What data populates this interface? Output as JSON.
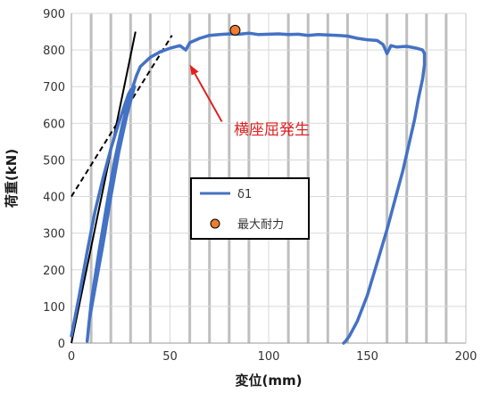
{
  "chart_data": {
    "type": "line",
    "title": "",
    "xlabel": "変位(mm)",
    "ylabel": "荷重(kN)",
    "xlim": [
      0,
      200
    ],
    "ylim": [
      0,
      900
    ],
    "xticks": [
      "0",
      "50",
      "100",
      "150",
      "200"
    ],
    "yticks": [
      "0",
      "100",
      "200",
      "300",
      "400",
      "500",
      "600",
      "700",
      "800",
      "900"
    ],
    "grid": {
      "x_minor_step": 10,
      "x_major_step": 50,
      "y_step": 100
    },
    "series": [
      {
        "name": "δ1",
        "color": "#4472C4",
        "x": [
          0,
          4,
          8,
          12,
          16,
          20,
          24,
          27,
          29,
          30,
          32,
          28,
          24,
          20,
          16,
          12,
          9,
          8,
          10,
          14,
          18,
          22,
          26,
          30,
          33,
          35,
          40,
          45,
          50,
          55,
          58,
          60,
          65,
          70,
          75,
          80,
          85,
          90,
          95,
          100,
          105,
          110,
          115,
          120,
          125,
          130,
          135,
          140,
          145,
          150,
          155,
          158,
          160,
          162,
          165,
          170,
          175,
          178,
          179,
          179,
          178,
          176,
          174,
          171,
          168,
          164,
          160,
          155,
          150,
          145,
          141,
          139,
          138
        ],
        "y": [
          20,
          130,
          250,
          360,
          450,
          530,
          600,
          650,
          680,
          690,
          700,
          620,
          520,
          400,
          270,
          150,
          60,
          5,
          110,
          250,
          380,
          500,
          600,
          680,
          730,
          755,
          780,
          795,
          805,
          812,
          800,
          820,
          832,
          840,
          842,
          844,
          843,
          846,
          842,
          843,
          844,
          842,
          843,
          840,
          842,
          841,
          840,
          838,
          832,
          828,
          826,
          815,
          790,
          812,
          808,
          810,
          805,
          800,
          790,
          760,
          720,
          670,
          610,
          540,
          470,
          390,
          310,
          220,
          130,
          60,
          20,
          5,
          0
        ]
      },
      {
        "name": "最大耐力",
        "type": "point",
        "color": "#ED7D31",
        "x": [
          83
        ],
        "y": [
          854
        ]
      }
    ],
    "reference_lines": [
      {
        "style": "solid",
        "color": "#000000",
        "x": [
          0,
          32.5
        ],
        "y": [
          0,
          850
        ]
      },
      {
        "style": "dashed",
        "color": "#000000",
        "x": [
          0,
          51
        ],
        "y": [
          400,
          840
        ]
      }
    ],
    "annotations": [
      {
        "text": "横座屈発生",
        "color": "#e02020",
        "arrow_to": [
          60,
          760
        ],
        "text_at": [
          168,
          582
        ]
      }
    ],
    "legend": {
      "placement": "center-right",
      "entries": [
        "δ1",
        "最大耐力"
      ]
    }
  }
}
